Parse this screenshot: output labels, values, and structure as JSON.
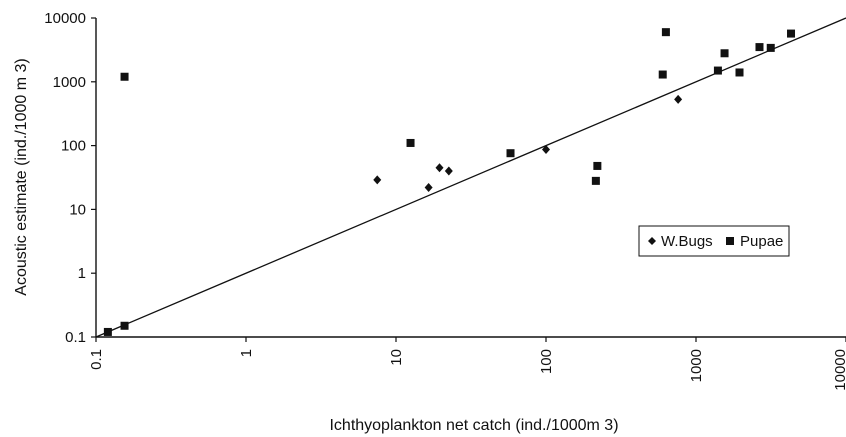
{
  "chart_data": {
    "type": "scatter",
    "title": "",
    "xlabel": "Ichthyoplankton net catch (ind./1000m 3)",
    "ylabel": "Acoustic estimate (ind./1000 m 3)",
    "xscale": "log",
    "yscale": "log",
    "xlim": [
      0.1,
      10000
    ],
    "ylim": [
      0.1,
      10000
    ],
    "xticks": [
      "0.1",
      "1",
      "10",
      "100",
      "1000",
      "10000"
    ],
    "yticks": [
      "0.1",
      "1",
      "10",
      "100",
      "1000",
      "10000"
    ],
    "grid": false,
    "legend_position": "right",
    "series": [
      {
        "name": "W.Bugs",
        "marker": "diamond",
        "color": "#111111",
        "points": [
          {
            "x": 7.5,
            "y": 29
          },
          {
            "x": 16.5,
            "y": 22
          },
          {
            "x": 19.5,
            "y": 45
          },
          {
            "x": 22.5,
            "y": 40
          },
          {
            "x": 100,
            "y": 87
          },
          {
            "x": 760,
            "y": 530
          }
        ]
      },
      {
        "name": "Pupae",
        "marker": "square",
        "color": "#111111",
        "points": [
          {
            "x": 0.12,
            "y": 0.12
          },
          {
            "x": 0.155,
            "y": 0.15
          },
          {
            "x": 0.155,
            "y": 1200
          },
          {
            "x": 12.5,
            "y": 110
          },
          {
            "x": 58,
            "y": 76
          },
          {
            "x": 215,
            "y": 28
          },
          {
            "x": 220,
            "y": 48
          },
          {
            "x": 600,
            "y": 1300
          },
          {
            "x": 630,
            "y": 6000
          },
          {
            "x": 1400,
            "y": 1500
          },
          {
            "x": 1550,
            "y": 2800
          },
          {
            "x": 1950,
            "y": 1400
          },
          {
            "x": 2650,
            "y": 3500
          },
          {
            "x": 3150,
            "y": 3400
          },
          {
            "x": 4300,
            "y": 5700
          }
        ]
      }
    ],
    "fit_line": {
      "type": "y=x",
      "x": [
        0.1,
        10000
      ],
      "y": [
        0.1,
        10000
      ]
    }
  }
}
